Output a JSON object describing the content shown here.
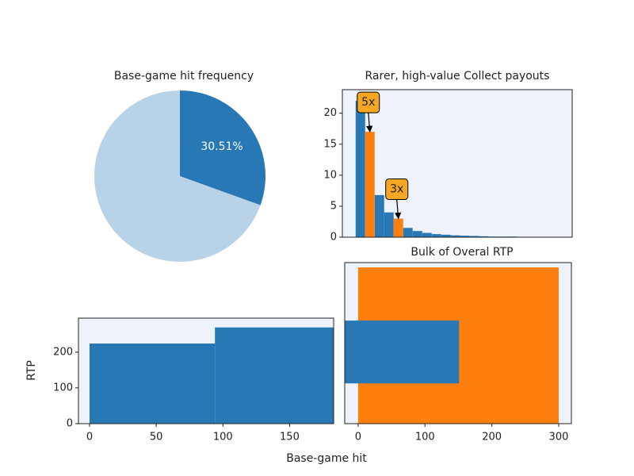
{
  "chart_data": [
    {
      "type": "pie",
      "title": "Base-game hit frequency",
      "values": [
        30.51,
        69.49
      ],
      "value_labels": [
        "30.51%",
        null
      ],
      "colors": [
        "#2878b5",
        "#b8d3e8"
      ]
    },
    {
      "type": "histogram",
      "title": "Rarer, high-value Collect payouts",
      "bins": [
        0,
        1,
        2,
        3,
        4,
        5,
        6,
        7,
        8,
        9,
        10,
        11,
        12,
        13,
        14,
        15,
        16,
        17,
        18,
        19,
        20
      ],
      "series": [
        {
          "color": "#2878b5",
          "values": [
            22,
            null,
            6.8,
            4,
            null,
            1.5,
            1.0,
            0.7,
            0.5,
            0.4,
            0.3,
            0.25,
            0.2,
            0.15,
            0.1,
            0.1,
            0.1,
            0.05,
            0.05,
            0.05
          ]
        },
        {
          "color": "#ff7f0e",
          "values": [
            null,
            17,
            null,
            null,
            3,
            null,
            null,
            null,
            null,
            null,
            null,
            null,
            null,
            null,
            null,
            null,
            null,
            null,
            null,
            null
          ]
        }
      ],
      "annotations": [
        "5x",
        "3x"
      ],
      "annotation_color": "#f5a623",
      "xlim": [
        -1.4,
        22.8
      ],
      "ylim": [
        0,
        23.8
      ],
      "yticks": [
        0,
        5,
        10,
        15,
        20
      ]
    },
    {
      "type": "histogram",
      "bins": [
        0,
        94,
        188
      ],
      "values": [
        224,
        269
      ],
      "color": "#2878b5",
      "xlabel": "Base-game hit",
      "ylabel": "RTP",
      "xlim": [
        -8.3,
        183
      ],
      "ylim": [
        0,
        295
      ],
      "xticks": [
        0,
        50,
        100,
        150
      ],
      "yticks": [
        0,
        100,
        200
      ]
    },
    {
      "type": "barh",
      "title": "Bulk of Overal RTP",
      "series": [
        {
          "color": "#ff7f0e",
          "values": [
            300
          ]
        },
        {
          "color": "#2878b5",
          "values": [
            151
          ]
        }
      ],
      "xlim": [
        -20,
        319
      ],
      "xticks": [
        0,
        100,
        200,
        300
      ]
    }
  ]
}
